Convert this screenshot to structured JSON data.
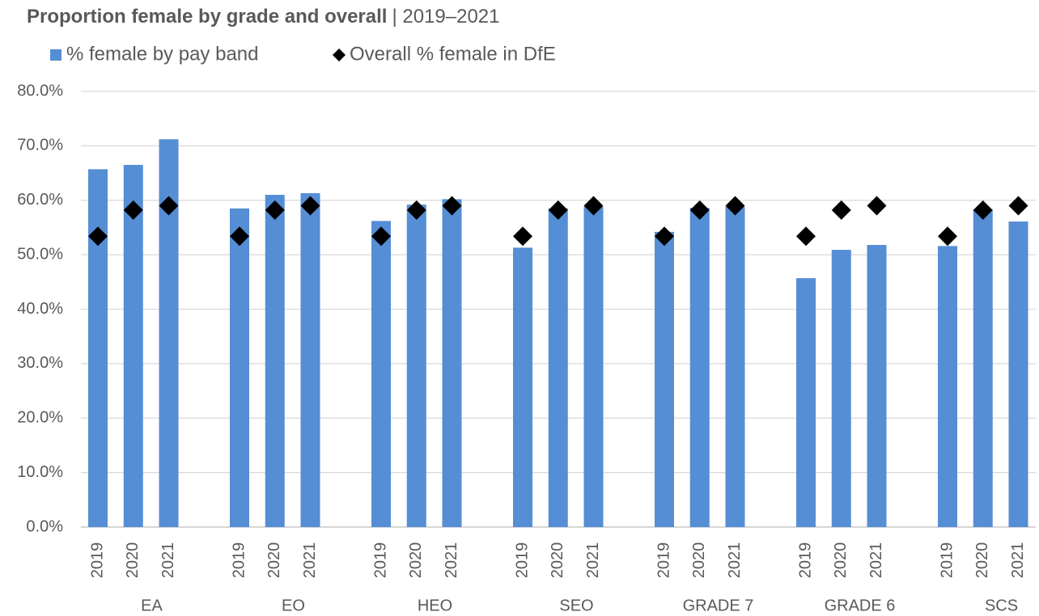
{
  "chart_data": {
    "type": "bar",
    "title": "Proportion female by grade and overall",
    "subtitle": "| 2019–2021",
    "categories": [
      "2019",
      "2020",
      "2021",
      "2019",
      "2020",
      "2021",
      "2019",
      "2020",
      "2021",
      "2019",
      "2020",
      "2021",
      "2019",
      "2020",
      "2021",
      "2019",
      "2020",
      "2021",
      "2019",
      "2020",
      "2021"
    ],
    "groups": [
      "EA",
      "EO",
      "HEO",
      "SEO",
      "GRADE 7",
      "GRADE 6",
      "SCS"
    ],
    "series": [
      {
        "name": "% female by pay band",
        "type": "bar",
        "color": "#558ed5",
        "values": [
          65.7,
          66.5,
          71.2,
          58.5,
          61.0,
          61.3,
          56.2,
          59.2,
          60.2,
          51.3,
          58.5,
          58.8,
          54.2,
          58.6,
          58.8,
          45.7,
          50.9,
          51.8,
          51.6,
          58.3,
          56.1
        ]
      },
      {
        "name": "Overall % female in DfE",
        "type": "diamond",
        "color": "#000000",
        "values": [
          53.4,
          58.2,
          59.0,
          53.4,
          58.2,
          59.0,
          53.4,
          58.2,
          59.0,
          53.4,
          58.2,
          59.0,
          53.4,
          58.2,
          59.0,
          53.4,
          58.2,
          59.0,
          53.4,
          58.2,
          59.0
        ]
      }
    ],
    "ylim": [
      0,
      80
    ],
    "yticks": [
      {
        "value": 0,
        "label": "0.0%"
      },
      {
        "value": 10,
        "label": "10.0%"
      },
      {
        "value": 20,
        "label": "20.0%"
      },
      {
        "value": 30,
        "label": "30.0%"
      },
      {
        "value": 40,
        "label": "40.0%"
      },
      {
        "value": 50,
        "label": "50.0%"
      },
      {
        "value": 60,
        "label": "60.0%"
      },
      {
        "value": 70,
        "label": "70.0%"
      },
      {
        "value": 80,
        "label": "80.0%"
      }
    ],
    "grid": true,
    "legend": "top"
  }
}
